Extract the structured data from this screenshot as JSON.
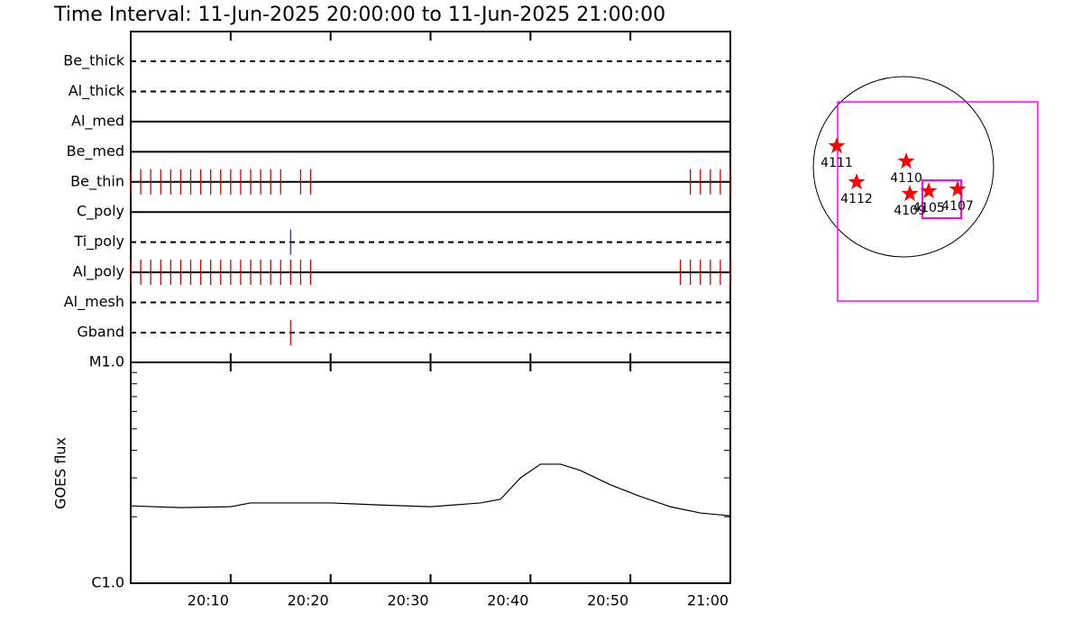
{
  "chart_data": [
    {
      "type": "timeline",
      "title": "Time Interval: 11-Jun-2025 20:00:00 to 11-Jun-2025 21:00:00",
      "xlim": [
        "20:00",
        "21:00"
      ],
      "rows": [
        {
          "name": "Be_thick",
          "style": "dashed",
          "color": "#d00000",
          "events": []
        },
        {
          "name": "Al_thick",
          "style": "dashed",
          "color": "#d00000",
          "events": []
        },
        {
          "name": "Al_med",
          "style": "solid",
          "color": "#d00000",
          "events": []
        },
        {
          "name": "Be_med",
          "style": "solid",
          "color": "#d00000",
          "events": []
        },
        {
          "name": "Be_thin",
          "style": "solid",
          "color": "#d00000",
          "events": [
            "20:00",
            "20:01",
            "20:02",
            "20:03",
            "20:04",
            "20:05",
            "20:06",
            "20:07",
            "20:08",
            "20:09",
            "20:10",
            "20:11",
            "20:12",
            "20:13",
            "20:14",
            "20:15",
            "20:17",
            "20:18",
            "20:56",
            "20:57",
            "20:58",
            "20:59",
            "21:00"
          ]
        },
        {
          "name": "C_poly",
          "style": "solid",
          "color": "#d00000",
          "events": []
        },
        {
          "name": "Ti_poly",
          "style": "dashed",
          "color": "#3030a0",
          "events": [
            "20:16"
          ]
        },
        {
          "name": "Al_poly",
          "style": "solid",
          "color": "#d00000",
          "events": [
            "20:00",
            "20:01",
            "20:02",
            "20:03",
            "20:04",
            "20:05",
            "20:06",
            "20:07",
            "20:08",
            "20:09",
            "20:10",
            "20:11",
            "20:12",
            "20:13",
            "20:14",
            "20:15",
            "20:16",
            "20:17",
            "20:18",
            "20:55",
            "20:56",
            "20:57",
            "20:58",
            "20:59",
            "21:00"
          ]
        },
        {
          "name": "Al_mesh",
          "style": "dashed",
          "color": "#d00000",
          "events": []
        },
        {
          "name": "Gband",
          "style": "dashed",
          "color": "#ff0000",
          "events": [
            "20:16"
          ]
        }
      ]
    },
    {
      "type": "line",
      "ylabel": "GOES flux",
      "log_y": true,
      "color": "#000000",
      "x": [
        "20:00",
        "20:05",
        "20:10",
        "20:12",
        "20:15",
        "20:20",
        "20:25",
        "20:30",
        "20:35",
        "20:37",
        "20:39",
        "20:41",
        "20:43",
        "20:45",
        "20:48",
        "20:51",
        "20:54",
        "20:57",
        "21:00"
      ],
      "values": [
        2.24e-06,
        2.2e-06,
        2.22e-06,
        2.31e-06,
        2.31e-06,
        2.31e-06,
        2.26e-06,
        2.22e-06,
        2.31e-06,
        2.4e-06,
        3e-06,
        3.46e-06,
        3.46e-06,
        3.24e-06,
        2.79e-06,
        2.47e-06,
        2.22e-06,
        2.08e-06,
        2.02e-06
      ],
      "xlim": [
        "20:00",
        "21:00"
      ],
      "xticks": [
        "20:10",
        "20:20",
        "20:30",
        "20:40",
        "20:50",
        "21:00"
      ],
      "ylim": [
        1e-06,
        1e-05
      ],
      "yticks": [
        {
          "value": 1e-06,
          "label": "C1.0"
        },
        {
          "value": 1e-05,
          "label": "M1.0"
        }
      ],
      "yminorticks": [
        2e-06,
        3e-06,
        4e-06,
        5e-06,
        6e-06,
        7e-06,
        8e-06,
        9e-06
      ]
    },
    {
      "type": "scatter",
      "color": "#ff0000",
      "xlim": [
        -950,
        950
      ],
      "ylim": [
        -950,
        950
      ],
      "labels": [
        "4111",
        "4112",
        "4110",
        "4109",
        "4105",
        "4107"
      ],
      "x": [
        -703,
        -494,
        29,
        67,
        266,
        570
      ],
      "values": [
        218,
        -162,
        57,
        -285,
        -257,
        -238
      ]
    }
  ]
}
